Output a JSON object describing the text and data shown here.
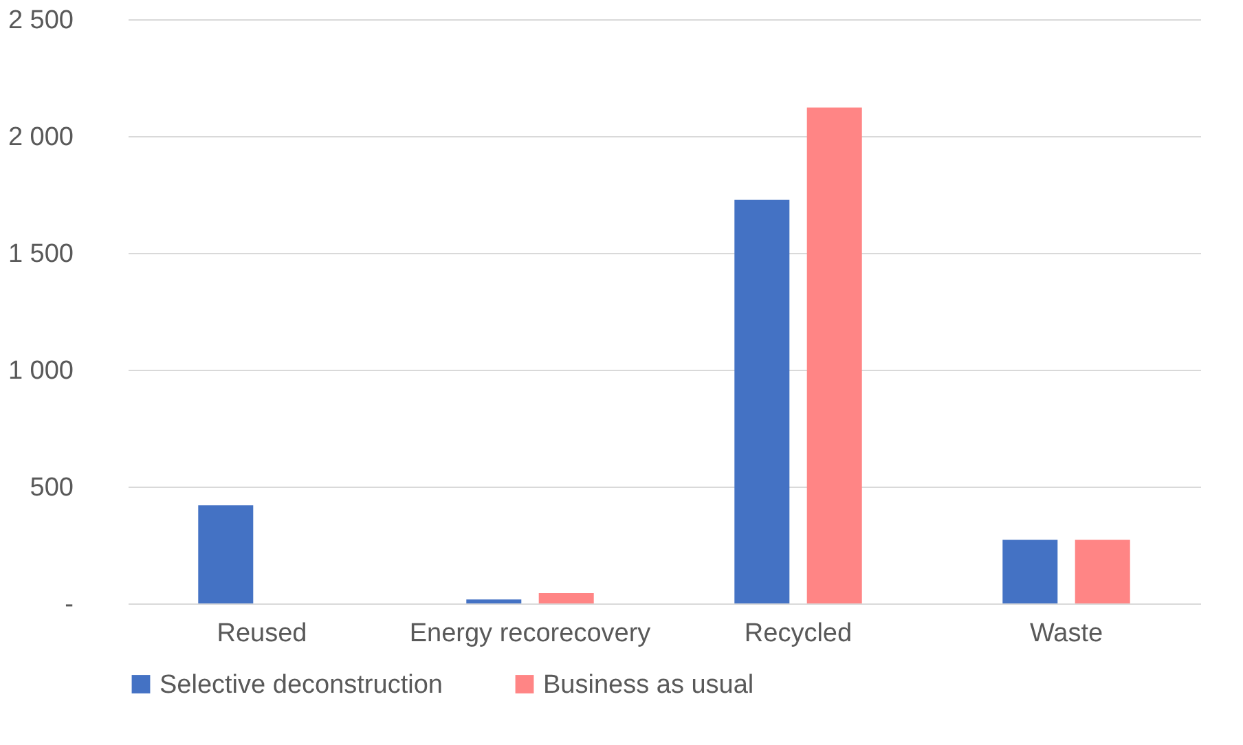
{
  "chart_data": {
    "type": "bar",
    "categories": [
      "Reused",
      "Energy recorecovery",
      "Recycled",
      "Waste"
    ],
    "series": [
      {
        "name": "Selective deconstruction",
        "color": "#4472c4",
        "values": [
          420,
          17,
          1727,
          272
        ]
      },
      {
        "name": "Business as usual",
        "color": "#ff8585",
        "values": [
          0,
          44,
          2122,
          272
        ]
      }
    ],
    "ylim": [
      0,
      2500
    ],
    "yticks": [
      {
        "value": 0,
        "label": "-"
      },
      {
        "value": 500,
        "label": "500"
      },
      {
        "value": 1000,
        "label": "1 000"
      },
      {
        "value": 1500,
        "label": "1 500"
      },
      {
        "value": 2000,
        "label": "2 000"
      },
      {
        "value": 2500,
        "label": "2 500"
      }
    ],
    "grid": "y",
    "legend": "bottom"
  }
}
